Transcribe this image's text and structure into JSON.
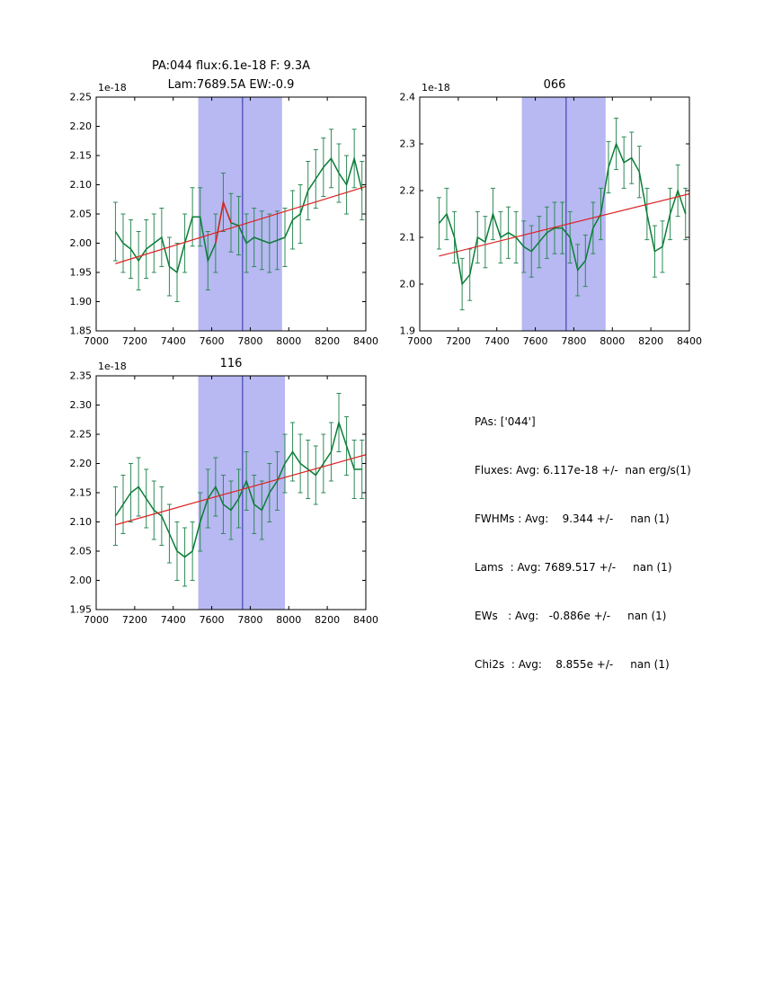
{
  "colors": {
    "data_line": "#0a7d36",
    "error_bar": "#2e8b57",
    "fit_line": "#dd2222",
    "band_fill": "#b8b8f2",
    "vline": "#2d2da8",
    "axis": "#000000",
    "text": "#000000",
    "background": "#ffffff"
  },
  "stats_panel": {
    "lines": [
      "PAs: ['044']",
      "Fluxes: Avg: 6.117e-18 +/-  nan erg/s(1)",
      "FWHMs : Avg:    9.344 +/-     nan (1)",
      "Lams  : Avg: 7689.517 +/-     nan (1)",
      "EWs   : Avg:   -0.886e +/-     nan (1)",
      "Chi2s  : Avg:    8.855e +/-     nan (1)"
    ]
  },
  "chart_data": [
    {
      "type": "line",
      "title_lines": [
        "PA:044 flux:6.1e-18 F: 9.3A",
        "Lam:7689.5A EW:-0.9"
      ],
      "offset_label": "1e-18",
      "xlabel": "",
      "ylabel": "",
      "legend": "none",
      "grid": false,
      "xlim": [
        7000,
        8400
      ],
      "ylim": [
        1.85,
        2.25
      ],
      "xticks": [
        7000,
        7200,
        7400,
        7600,
        7800,
        8000,
        8200,
        8400
      ],
      "xtick_labels": [
        "7000",
        "7200",
        "7400",
        "7600",
        "7800",
        "8000",
        "8200",
        "8400"
      ],
      "yticks": [
        1.85,
        1.9,
        1.95,
        2.0,
        2.05,
        2.1,
        2.15,
        2.2,
        2.25
      ],
      "ytick_labels": [
        "1.85",
        "1.90",
        "1.95",
        "2.00",
        "2.05",
        "2.10",
        "2.15",
        "2.20",
        "2.25"
      ],
      "band_x": [
        7530,
        7965
      ],
      "vline_x": 7760,
      "fit_line": {
        "x": [
          7100,
          8400
        ],
        "y": [
          1.965,
          2.097
        ]
      },
      "x": [
        7100,
        7140,
        7180,
        7220,
        7260,
        7300,
        7340,
        7380,
        7420,
        7460,
        7500,
        7540,
        7580,
        7620,
        7660,
        7700,
        7740,
        7780,
        7820,
        7860,
        7900,
        7940,
        7980,
        8020,
        8060,
        8100,
        8140,
        8180,
        8220,
        8260,
        8300,
        8340,
        8380
      ],
      "y": [
        2.02,
        2.0,
        1.99,
        1.97,
        1.99,
        2.0,
        2.01,
        1.96,
        1.95,
        2.0,
        2.045,
        2.045,
        1.97,
        2.0,
        2.07,
        2.035,
        2.03,
        2.0,
        2.01,
        2.005,
        2.0,
        2.005,
        2.01,
        2.04,
        2.05,
        2.09,
        2.11,
        2.13,
        2.145,
        2.12,
        2.1,
        2.145,
        2.09
      ],
      "yerr": 0.05,
      "peak_segment": {
        "x": [
          7620,
          7660,
          7700
        ],
        "y": [
          2.0,
          2.07,
          2.035
        ]
      }
    },
    {
      "type": "line",
      "title_lines": [
        "066"
      ],
      "offset_label": "1e-18",
      "xlabel": "",
      "ylabel": "",
      "legend": "none",
      "grid": false,
      "xlim": [
        7000,
        8400
      ],
      "ylim": [
        1.9,
        2.4
      ],
      "xticks": [
        7000,
        7200,
        7400,
        7600,
        7800,
        8000,
        8200,
        8400
      ],
      "xtick_labels": [
        "7000",
        "7200",
        "7400",
        "7600",
        "7800",
        "8000",
        "8200",
        "8400"
      ],
      "yticks": [
        1.9,
        2.0,
        2.1,
        2.2,
        2.3,
        2.4
      ],
      "ytick_labels": [
        "1.9",
        "2.0",
        "2.1",
        "2.2",
        "2.3",
        "2.4"
      ],
      "band_x": [
        7530,
        7965
      ],
      "vline_x": 7760,
      "fit_line": {
        "x": [
          7100,
          8400
        ],
        "y": [
          2.06,
          2.193
        ]
      },
      "x": [
        7100,
        7140,
        7180,
        7220,
        7260,
        7300,
        7340,
        7380,
        7420,
        7460,
        7500,
        7540,
        7580,
        7620,
        7660,
        7700,
        7740,
        7780,
        7820,
        7860,
        7900,
        7940,
        7980,
        8020,
        8060,
        8100,
        8140,
        8180,
        8220,
        8260,
        8300,
        8340,
        8380
      ],
      "y": [
        2.13,
        2.15,
        2.1,
        2.0,
        2.02,
        2.1,
        2.09,
        2.15,
        2.1,
        2.11,
        2.1,
        2.08,
        2.07,
        2.09,
        2.11,
        2.12,
        2.12,
        2.1,
        2.03,
        2.05,
        2.12,
        2.15,
        2.25,
        2.3,
        2.26,
        2.27,
        2.24,
        2.15,
        2.07,
        2.08,
        2.15,
        2.2,
        2.15
      ],
      "yerr": 0.055,
      "peak_segment": null
    },
    {
      "type": "line",
      "title_lines": [
        "116"
      ],
      "offset_label": "1e-18",
      "xlabel": "",
      "ylabel": "",
      "legend": "none",
      "grid": false,
      "xlim": [
        7000,
        8400
      ],
      "ylim": [
        1.95,
        2.35
      ],
      "xticks": [
        7000,
        7200,
        7400,
        7600,
        7800,
        8000,
        8200,
        8400
      ],
      "xtick_labels": [
        "7000",
        "7200",
        "7400",
        "7600",
        "7800",
        "8000",
        "8200",
        "8400"
      ],
      "yticks": [
        1.95,
        2.0,
        2.05,
        2.1,
        2.15,
        2.2,
        2.25,
        2.3,
        2.35
      ],
      "ytick_labels": [
        "1.95",
        "2.00",
        "2.05",
        "2.10",
        "2.15",
        "2.20",
        "2.25",
        "2.30",
        "2.35"
      ],
      "band_x": [
        7530,
        7980
      ],
      "vline_x": 7760,
      "fit_line": {
        "x": [
          7100,
          8400
        ],
        "y": [
          2.095,
          2.215
        ]
      },
      "x": [
        7100,
        7140,
        7180,
        7220,
        7260,
        7300,
        7340,
        7380,
        7420,
        7460,
        7500,
        7540,
        7580,
        7620,
        7660,
        7700,
        7740,
        7780,
        7820,
        7860,
        7900,
        7940,
        7980,
        8020,
        8060,
        8100,
        8140,
        8180,
        8220,
        8260,
        8300,
        8340,
        8380
      ],
      "y": [
        2.11,
        2.13,
        2.15,
        2.16,
        2.14,
        2.12,
        2.11,
        2.08,
        2.05,
        2.04,
        2.05,
        2.1,
        2.14,
        2.16,
        2.13,
        2.12,
        2.14,
        2.17,
        2.13,
        2.12,
        2.15,
        2.17,
        2.2,
        2.22,
        2.2,
        2.19,
        2.18,
        2.2,
        2.22,
        2.27,
        2.23,
        2.19,
        2.19
      ],
      "yerr": 0.05,
      "peak_segment": null
    }
  ]
}
